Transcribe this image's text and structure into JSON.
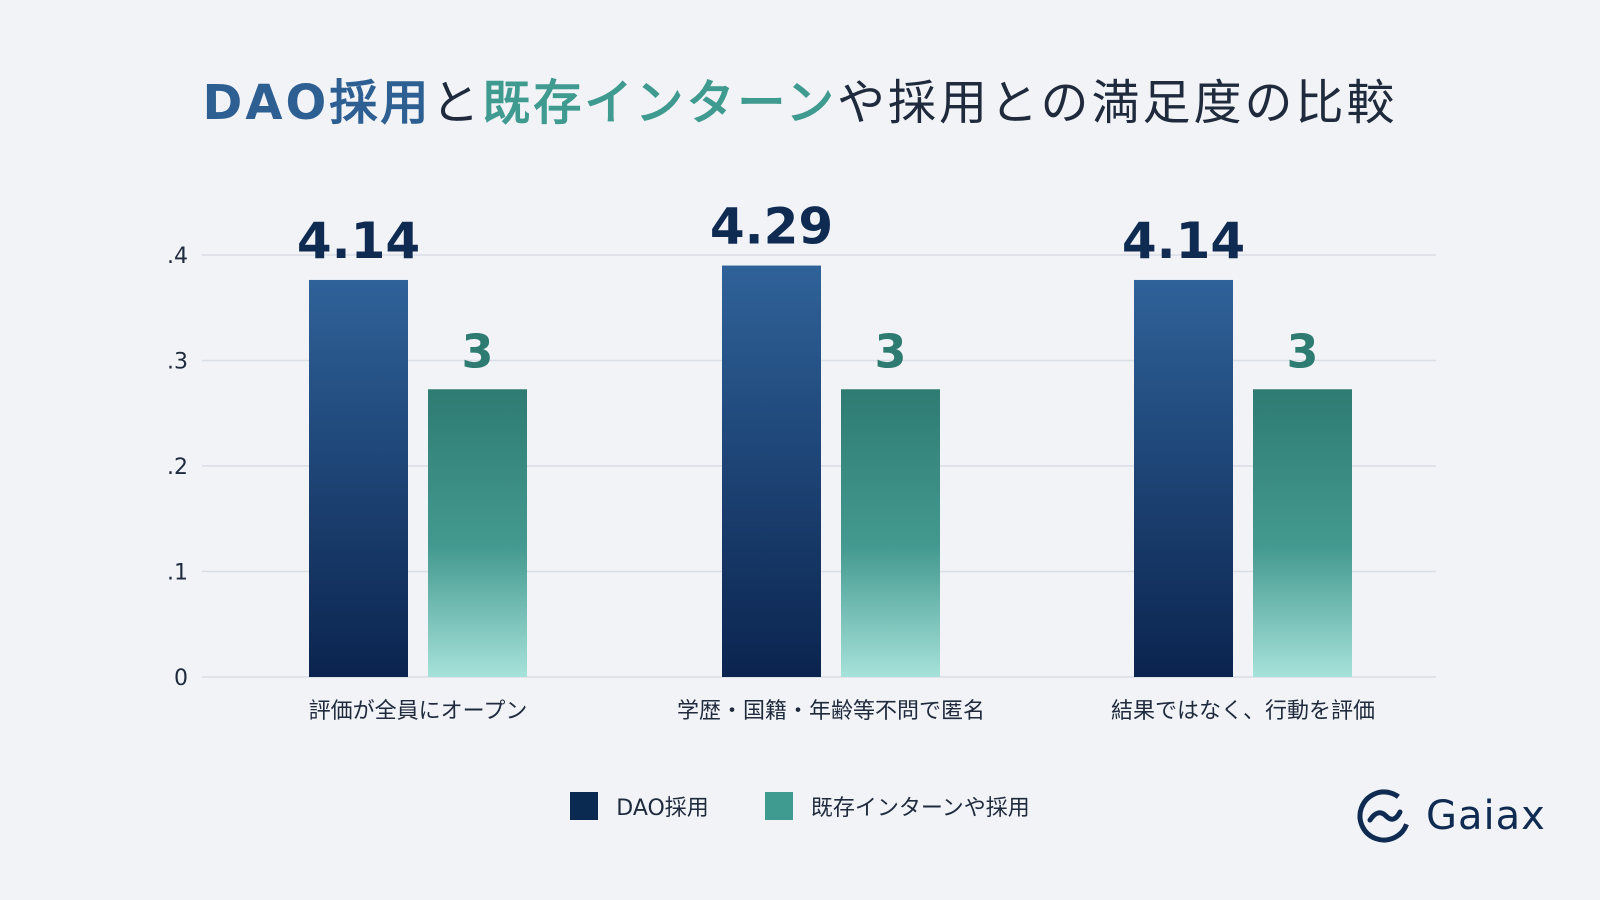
{
  "title": {
    "part1": "DAO採用",
    "part2": "と",
    "part3": "既存インターン",
    "part4": "や採用との満足度の比較"
  },
  "colors": {
    "dao_top": "#2f6299",
    "dao_bottom": "#0b244f",
    "existing_top": "#2e7b72",
    "existing_bottom": "#a6e2da",
    "dao_label": "#0f2b52",
    "existing_label": "#2e7b72",
    "legend_dao": "#0b2a52",
    "legend_existing": "#3f9a8f"
  },
  "chart_data": {
    "type": "bar",
    "categories": [
      "評価が全員にオープン",
      "学歴・国籍・年齢等不問で匿名",
      "結果ではなく、行動を評価"
    ],
    "series": [
      {
        "name": "DAO採用",
        "values": [
          4.14,
          4.29,
          4.14
        ],
        "labels": [
          "4.14",
          "4.29",
          "4.14"
        ]
      },
      {
        "name": "既存インターンや採用",
        "values": [
          3,
          3,
          3
        ],
        "labels": [
          "3",
          "3",
          "3"
        ]
      }
    ],
    "y_ticks": [
      {
        "value": 0,
        "label": "0"
      },
      {
        "value": 1.1,
        "label": ".1"
      },
      {
        "value": 2.2,
        "label": ".2"
      },
      {
        "value": 3.3,
        "label": ".3"
      },
      {
        "value": 4.4,
        "label": ".4"
      }
    ],
    "ylim": [
      0,
      4.4
    ],
    "grid": true,
    "legend_position": "bottom-center"
  },
  "logo": {
    "text": "Gaiax"
  }
}
